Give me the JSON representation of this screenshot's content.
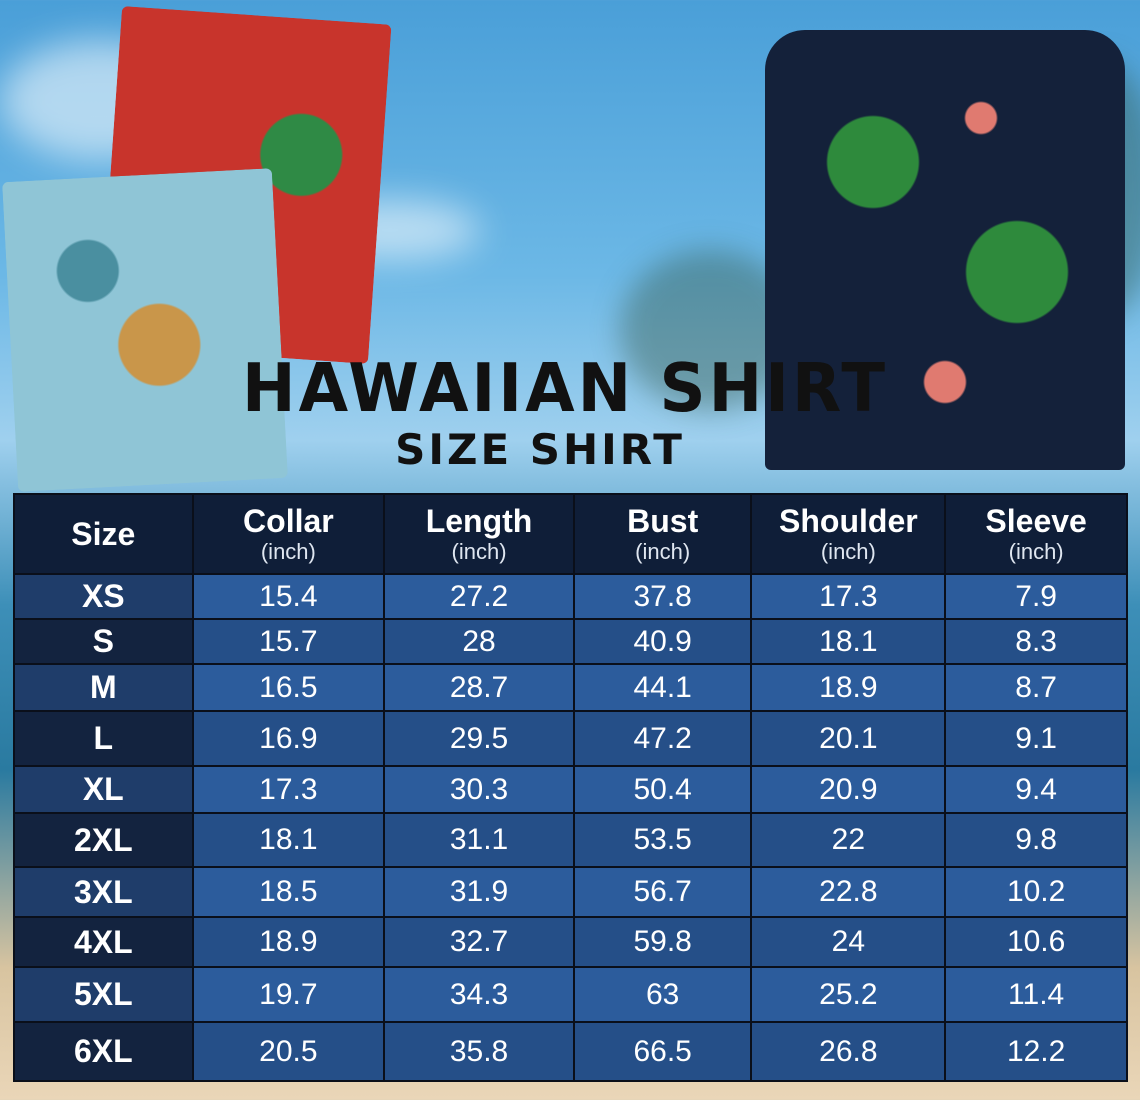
{
  "title": "HAWAIIAN SHIRT",
  "subtitle": "SIZE SHIRT",
  "columns": [
    {
      "label": "Size",
      "unit": ""
    },
    {
      "label": "Collar",
      "unit": "(inch)"
    },
    {
      "label": "Length",
      "unit": "(inch)"
    },
    {
      "label": "Bust",
      "unit": "(inch)"
    },
    {
      "label": "Shoulder",
      "unit": "(inch)"
    },
    {
      "label": "Sleeve",
      "unit": "(inch)"
    }
  ],
  "rows": [
    [
      "XS",
      "15.4",
      "27.2",
      "37.8",
      "17.3",
      "7.9"
    ],
    [
      "S",
      "15.7",
      "28",
      "40.9",
      "18.1",
      "8.3"
    ],
    [
      "M",
      "16.5",
      "28.7",
      "44.1",
      "18.9",
      "8.7"
    ],
    [
      "L",
      "16.9",
      "29.5",
      "47.2",
      "20.1",
      "9.1"
    ],
    [
      "XL",
      "17.3",
      "30.3",
      "50.4",
      "20.9",
      "9.4"
    ],
    [
      "2XL",
      "18.1",
      "31.1",
      "53.5",
      "22",
      "9.8"
    ],
    [
      "3XL",
      "18.5",
      "31.9",
      "56.7",
      "22.8",
      "10.2"
    ],
    [
      "4XL",
      "18.9",
      "32.7",
      "59.8",
      "24",
      "10.6"
    ],
    [
      "5XL",
      "19.7",
      "34.3",
      "63",
      "25.2",
      "11.4"
    ],
    [
      "6XL",
      "20.5",
      "35.8",
      "66.5",
      "26.8",
      "12.2"
    ]
  ],
  "colors": {
    "header": "#0f1e38",
    "row_light": "#2c5c9c",
    "row_dark": "#254f88"
  }
}
